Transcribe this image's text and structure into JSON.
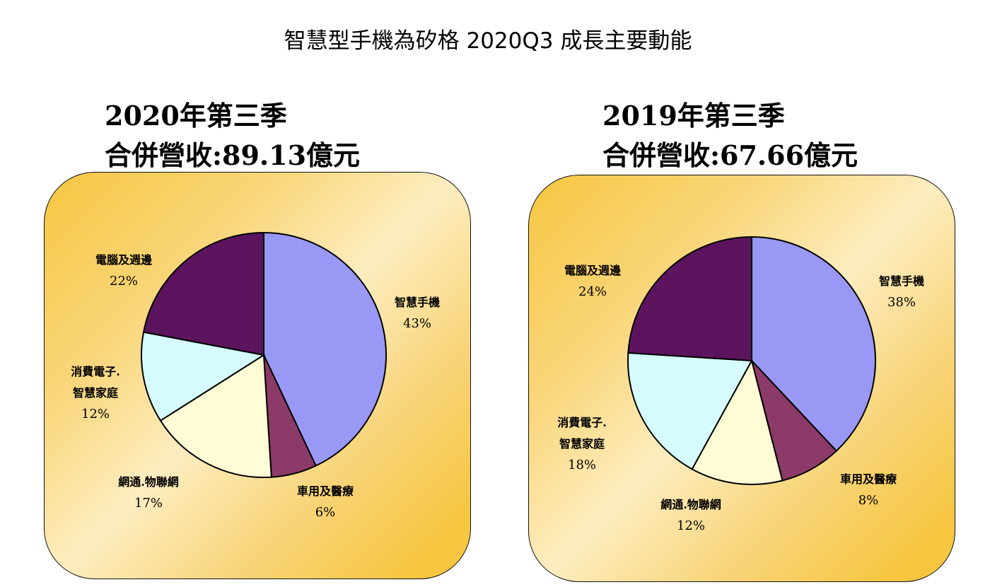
{
  "title": "智慧型手機為矽格 2020Q3 成長主要動能",
  "chart_data": [
    {
      "type": "pie",
      "title_line1": "2020年第三季",
      "title_line2": "合併營收:89.13億元",
      "slices": [
        {
          "label": "智慧手機",
          "label2": "",
          "value": 43,
          "pct": "43%",
          "color": "#9999F5"
        },
        {
          "label": "車用及醫療",
          "label2": "",
          "value": 6,
          "pct": "6%",
          "color": "#8C3A67"
        },
        {
          "label": "網通.物聯網",
          "label2": "",
          "value": 17,
          "pct": "17%",
          "color": "#FFFCD6"
        },
        {
          "label": "消費電子.",
          "label2": "智慧家庭",
          "value": 12,
          "pct": "12%",
          "color": "#D6FBFF"
        },
        {
          "label": "電腦及週邊",
          "label2": "",
          "value": 22,
          "pct": "22%",
          "color": "#5C145E"
        }
      ]
    },
    {
      "type": "pie",
      "title_line1": "2019年第三季",
      "title_line2": "合併營收:67.66億元",
      "slices": [
        {
          "label": "智慧手機",
          "label2": "",
          "value": 38,
          "pct": "38%",
          "color": "#9999F5"
        },
        {
          "label": "車用及醫療",
          "label2": "",
          "value": 8,
          "pct": "8%",
          "color": "#8C3A67"
        },
        {
          "label": "網通.物聯網",
          "label2": "",
          "value": 12,
          "pct": "12%",
          "color": "#FFFCD6"
        },
        {
          "label": "消費電子.",
          "label2": "智慧家庭",
          "value": 18,
          "pct": "18%",
          "color": "#D6FBFF"
        },
        {
          "label": "電腦及週邊",
          "label2": "",
          "value": 24,
          "pct": "24%",
          "color": "#5C145E"
        }
      ]
    }
  ]
}
